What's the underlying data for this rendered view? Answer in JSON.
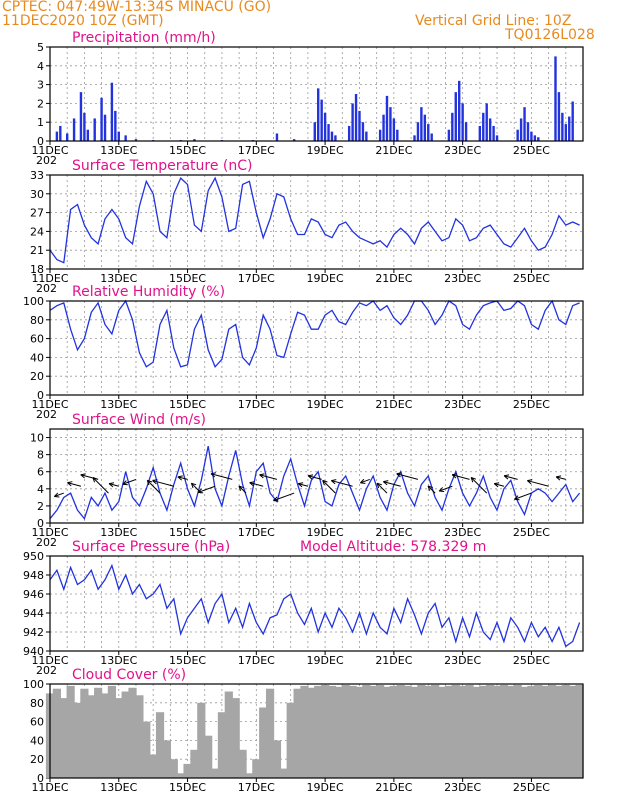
{
  "header": {
    "location": "CPTEC:  047:49W-13:34S  MINACU (GO)",
    "date": "11DEC2020 10Z (GMT)",
    "grid_note": "Vertical Grid Line: 10Z",
    "model_code": "TQ0126L028"
  },
  "colors": {
    "header": "#e88a1e",
    "title": "#e0138b",
    "line": "#2233dd",
    "cloud": "#a6a6a6"
  },
  "x_axis": {
    "ticks": [
      "11DEC",
      "13DEC",
      "15DEC",
      "17DEC",
      "19DEC",
      "21DEC",
      "23DEC",
      "25DEC"
    ],
    "year_fragment": "202",
    "start_day": 11,
    "end_day": 26.5
  },
  "chart_data": [
    {
      "name": "precip",
      "type": "bar",
      "title": "Precipitation (mm/h)",
      "ylim": [
        0,
        5
      ],
      "yticks": [
        0,
        1,
        2,
        3,
        4,
        5
      ],
      "grid": true,
      "x": [
        11.2,
        11.3,
        11.5,
        11.7,
        11.9,
        12.0,
        12.1,
        12.3,
        12.5,
        12.6,
        12.8,
        12.9,
        13.0,
        13.2,
        13.5,
        14.0,
        14.8,
        15.2,
        16.0,
        16.9,
        17.6,
        18.1,
        18.7,
        18.8,
        18.9,
        19.0,
        19.1,
        19.2,
        19.3,
        19.7,
        19.8,
        19.9,
        20.0,
        20.1,
        20.2,
        20.6,
        20.7,
        20.8,
        20.9,
        21.0,
        21.1,
        21.6,
        21.7,
        21.8,
        21.9,
        22.0,
        22.1,
        22.6,
        22.7,
        22.8,
        22.9,
        23.0,
        23.1,
        23.5,
        23.6,
        23.7,
        23.8,
        23.9,
        24.0,
        24.6,
        24.7,
        24.8,
        24.9,
        25.0,
        25.1,
        25.2,
        25.7,
        25.8,
        25.9,
        26.0,
        26.1,
        26.2
      ],
      "values": [
        0.5,
        0.8,
        0.4,
        1.2,
        2.6,
        1.5,
        0.6,
        1.2,
        2.3,
        1.4,
        3.1,
        1.6,
        0.5,
        0.3,
        0.1,
        0.05,
        0.05,
        0.1,
        0.05,
        0.05,
        0.4,
        0.1,
        1.0,
        2.8,
        2.2,
        1.5,
        0.9,
        0.5,
        0.3,
        0.8,
        2.0,
        2.5,
        1.6,
        1.0,
        0.5,
        0.6,
        1.4,
        2.4,
        1.8,
        1.2,
        0.6,
        0.3,
        1.0,
        1.8,
        1.4,
        0.9,
        0.4,
        0.6,
        1.5,
        2.6,
        3.2,
        2.0,
        1.0,
        0.8,
        1.5,
        2.0,
        1.2,
        0.8,
        0.3,
        0.6,
        1.2,
        1.8,
        1.0,
        0.5,
        0.3,
        0.2,
        4.5,
        2.6,
        1.5,
        0.9,
        1.3,
        2.1
      ]
    },
    {
      "name": "temperature",
      "type": "line",
      "title": "Surface Temperature (nC)",
      "ylim": [
        18,
        33
      ],
      "yticks": [
        18,
        21,
        24,
        27,
        30,
        33
      ],
      "grid": true,
      "x": [
        11.0,
        11.2,
        11.4,
        11.6,
        11.8,
        12.0,
        12.2,
        12.4,
        12.6,
        12.8,
        13.0,
        13.2,
        13.4,
        13.6,
        13.8,
        14.0,
        14.2,
        14.4,
        14.6,
        14.8,
        15.0,
        15.2,
        15.4,
        15.6,
        15.8,
        16.0,
        16.2,
        16.4,
        16.6,
        16.8,
        17.0,
        17.2,
        17.4,
        17.6,
        17.8,
        18.0,
        18.2,
        18.4,
        18.6,
        18.8,
        19.0,
        19.2,
        19.4,
        19.6,
        19.8,
        20.0,
        20.2,
        20.4,
        20.6,
        20.8,
        21.0,
        21.2,
        21.4,
        21.6,
        21.8,
        22.0,
        22.2,
        22.4,
        22.6,
        22.8,
        23.0,
        23.2,
        23.4,
        23.6,
        23.8,
        24.0,
        24.2,
        24.4,
        24.6,
        24.8,
        25.0,
        25.2,
        25.4,
        25.6,
        25.8,
        26.0,
        26.2,
        26.4
      ],
      "values": [
        21.0,
        19.5,
        19.0,
        27.5,
        28.3,
        25.0,
        23.0,
        22.0,
        26.0,
        27.5,
        26.0,
        23.0,
        22.0,
        28.0,
        32.0,
        30.0,
        24.0,
        23.0,
        30.0,
        32.5,
        31.5,
        25.0,
        24.0,
        30.5,
        32.5,
        29.5,
        24.0,
        24.5,
        31.5,
        32.0,
        27.0,
        23.0,
        26.0,
        30.0,
        29.5,
        26.0,
        23.5,
        23.5,
        26.0,
        25.5,
        23.5,
        23.0,
        25.0,
        25.5,
        24.0,
        23.0,
        22.5,
        22.0,
        22.5,
        21.5,
        23.5,
        24.5,
        23.5,
        22.0,
        24.5,
        25.5,
        24.0,
        22.5,
        23.0,
        26.0,
        25.0,
        22.5,
        23.0,
        24.5,
        25.0,
        23.5,
        22.0,
        21.5,
        23.0,
        24.5,
        22.5,
        21.0,
        21.5,
        23.5,
        26.5,
        25.0,
        25.5,
        25.0
      ]
    },
    {
      "name": "humidity",
      "type": "line",
      "title": "Relative Humidity (%)",
      "ylim": [
        0,
        100
      ],
      "yticks": [
        0,
        20,
        40,
        60,
        80,
        100
      ],
      "grid": true,
      "x": [
        11.0,
        11.2,
        11.4,
        11.6,
        11.8,
        12.0,
        12.2,
        12.4,
        12.6,
        12.8,
        13.0,
        13.2,
        13.4,
        13.6,
        13.8,
        14.0,
        14.2,
        14.4,
        14.6,
        14.8,
        15.0,
        15.2,
        15.4,
        15.6,
        15.8,
        16.0,
        16.2,
        16.4,
        16.6,
        16.8,
        17.0,
        17.2,
        17.4,
        17.6,
        17.8,
        18.0,
        18.2,
        18.4,
        18.6,
        18.8,
        19.0,
        19.2,
        19.4,
        19.6,
        19.8,
        20.0,
        20.2,
        20.4,
        20.6,
        20.8,
        21.0,
        21.2,
        21.4,
        21.6,
        21.8,
        22.0,
        22.2,
        22.4,
        22.6,
        22.8,
        23.0,
        23.2,
        23.4,
        23.6,
        23.8,
        24.0,
        24.2,
        24.4,
        24.6,
        24.8,
        25.0,
        25.2,
        25.4,
        25.6,
        25.8,
        26.0,
        26.2,
        26.4
      ],
      "values": [
        90,
        95,
        98,
        70,
        48,
        60,
        88,
        98,
        75,
        65,
        90,
        100,
        80,
        45,
        30,
        35,
        75,
        90,
        50,
        30,
        32,
        70,
        85,
        48,
        30,
        38,
        70,
        75,
        40,
        32,
        50,
        85,
        70,
        42,
        40,
        65,
        88,
        85,
        70,
        70,
        85,
        90,
        78,
        75,
        88,
        98,
        95,
        100,
        90,
        95,
        82,
        75,
        85,
        100,
        100,
        90,
        75,
        85,
        100,
        95,
        75,
        70,
        85,
        95,
        98,
        100,
        90,
        92,
        100,
        95,
        75,
        70,
        90,
        100,
        80,
        75,
        95,
        98
      ]
    },
    {
      "name": "wind",
      "type": "line",
      "title": "Surface Wind (m/s)",
      "ylim": [
        0,
        11
      ],
      "yticks": [
        0,
        2,
        4,
        6,
        8,
        10
      ],
      "grid": true,
      "x": [
        11.0,
        11.2,
        11.4,
        11.6,
        11.8,
        12.0,
        12.2,
        12.4,
        12.6,
        12.8,
        13.0,
        13.2,
        13.4,
        13.6,
        13.8,
        14.0,
        14.2,
        14.4,
        14.6,
        14.8,
        15.0,
        15.2,
        15.4,
        15.6,
        15.8,
        16.0,
        16.2,
        16.4,
        16.6,
        16.8,
        17.0,
        17.2,
        17.4,
        17.6,
        17.8,
        18.0,
        18.2,
        18.4,
        18.6,
        18.8,
        19.0,
        19.2,
        19.4,
        19.6,
        19.8,
        20.0,
        20.2,
        20.4,
        20.6,
        20.8,
        21.0,
        21.2,
        21.4,
        21.6,
        21.8,
        22.0,
        22.2,
        22.4,
        22.6,
        22.8,
        23.0,
        23.2,
        23.4,
        23.6,
        23.8,
        24.0,
        24.2,
        24.4,
        24.6,
        24.8,
        25.0,
        25.2,
        25.4,
        25.6,
        25.8,
        26.0,
        26.2,
        26.4
      ],
      "values": [
        0.5,
        1.5,
        3.0,
        3.5,
        1.5,
        0.5,
        3.0,
        2.0,
        3.5,
        1.5,
        2.5,
        6.0,
        3.0,
        2.0,
        4.0,
        6.5,
        3.5,
        1.5,
        4.5,
        7.0,
        4.0,
        2.0,
        5.0,
        9.0,
        4.0,
        2.0,
        5.5,
        8.5,
        4.5,
        2.0,
        6.0,
        7.0,
        3.5,
        2.5,
        5.5,
        7.5,
        4.5,
        2.0,
        5.0,
        6.0,
        2.5,
        2.0,
        4.5,
        5.5,
        3.5,
        1.5,
        4.0,
        5.5,
        3.0,
        1.5,
        4.5,
        6.0,
        3.5,
        2.0,
        4.5,
        5.5,
        3.0,
        1.5,
        4.0,
        6.0,
        3.5,
        2.0,
        3.5,
        5.5,
        3.0,
        1.5,
        4.0,
        5.0,
        2.5,
        1.0,
        3.5,
        4.0,
        3.5,
        2.5,
        3.5,
        4.5,
        2.5,
        3.5
      ]
    },
    {
      "name": "pressure",
      "type": "line",
      "title": "Surface Pressure (hPa)",
      "annotation": "Model Altitude: 578.329  m",
      "ylim": [
        940,
        950
      ],
      "yticks": [
        940,
        942,
        944,
        946,
        948,
        950
      ],
      "grid": true,
      "x": [
        11.0,
        11.2,
        11.4,
        11.6,
        11.8,
        12.0,
        12.2,
        12.4,
        12.6,
        12.8,
        13.0,
        13.2,
        13.4,
        13.6,
        13.8,
        14.0,
        14.2,
        14.4,
        14.6,
        14.8,
        15.0,
        15.2,
        15.4,
        15.6,
        15.8,
        16.0,
        16.2,
        16.4,
        16.6,
        16.8,
        17.0,
        17.2,
        17.4,
        17.6,
        17.8,
        18.0,
        18.2,
        18.4,
        18.6,
        18.8,
        19.0,
        19.2,
        19.4,
        19.6,
        19.8,
        20.0,
        20.2,
        20.4,
        20.6,
        20.8,
        21.0,
        21.2,
        21.4,
        21.6,
        21.8,
        22.0,
        22.2,
        22.4,
        22.6,
        22.8,
        23.0,
        23.2,
        23.4,
        23.6,
        23.8,
        24.0,
        24.2,
        24.4,
        24.6,
        24.8,
        25.0,
        25.2,
        25.4,
        25.6,
        25.8,
        26.0,
        26.2,
        26.4
      ],
      "values": [
        947.5,
        948.5,
        946.5,
        948.8,
        947.0,
        947.5,
        948.5,
        946.5,
        947.5,
        949.0,
        946.5,
        948.0,
        946.0,
        947.0,
        945.5,
        946.0,
        947.0,
        944.5,
        945.5,
        941.8,
        943.5,
        944.5,
        945.5,
        943.0,
        945.0,
        946.0,
        943.0,
        944.5,
        942.5,
        945.0,
        943.0,
        941.8,
        943.5,
        943.8,
        945.5,
        946.0,
        944.0,
        942.8,
        944.5,
        942.0,
        944.0,
        942.5,
        944.5,
        943.5,
        942.0,
        944.0,
        941.8,
        944.0,
        942.5,
        941.8,
        944.5,
        943.0,
        945.5,
        943.8,
        941.8,
        944.0,
        945.0,
        942.5,
        943.5,
        941.0,
        943.5,
        941.5,
        944.0,
        942.0,
        941.2,
        943.0,
        941.0,
        943.5,
        942.5,
        941.0,
        943.0,
        941.5,
        942.5,
        941.0,
        942.5,
        940.5,
        941.0,
        943.0
      ]
    },
    {
      "name": "cloud",
      "type": "bar",
      "title": "Cloud Cover (%)",
      "ylim": [
        0,
        100
      ],
      "yticks": [
        0,
        20,
        40,
        60,
        80,
        100
      ],
      "grid": true,
      "x": [
        11.0,
        11.2,
        11.4,
        11.6,
        11.8,
        12.0,
        12.2,
        12.4,
        12.6,
        12.8,
        13.0,
        13.2,
        13.4,
        13.6,
        13.8,
        14.0,
        14.2,
        14.4,
        14.6,
        14.8,
        15.0,
        15.2,
        15.4,
        15.6,
        15.8,
        16.0,
        16.2,
        16.4,
        16.6,
        16.8,
        17.0,
        17.2,
        17.4,
        17.6,
        17.8,
        18.0,
        18.2,
        18.4,
        18.6,
        18.8,
        19.0,
        19.2,
        19.4,
        19.6,
        19.8,
        20.0,
        20.2,
        20.4,
        20.6,
        20.8,
        21.0,
        21.2,
        21.4,
        21.6,
        21.8,
        22.0,
        22.2,
        22.4,
        22.6,
        22.8,
        23.0,
        23.2,
        23.4,
        23.6,
        23.8,
        24.0,
        24.2,
        24.4,
        24.6,
        24.8,
        25.0,
        25.2,
        25.4,
        25.6,
        25.8,
        26.0,
        26.2,
        26.4
      ],
      "values": [
        90,
        95,
        85,
        98,
        80,
        95,
        88,
        96,
        90,
        98,
        85,
        92,
        96,
        88,
        60,
        25,
        70,
        40,
        20,
        5,
        15,
        30,
        80,
        45,
        10,
        70,
        92,
        85,
        30,
        5,
        20,
        75,
        95,
        40,
        10,
        80,
        95,
        98,
        96,
        98,
        99,
        98,
        97,
        99,
        98,
        97,
        99,
        98,
        99,
        97,
        98,
        99,
        98,
        97,
        99,
        98,
        99,
        97,
        98,
        99,
        98,
        99,
        97,
        98,
        99,
        98,
        99,
        98,
        99,
        97,
        98,
        99,
        98,
        99,
        98,
        99,
        98,
        99
      ]
    }
  ]
}
